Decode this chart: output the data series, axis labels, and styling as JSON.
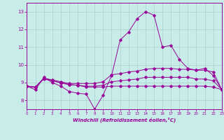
{
  "xlabel": "Windchill (Refroidissement éolien,°C)",
  "background_color": "#c8ece8",
  "grid_color": "#b0d0d0",
  "line_color": "#990099",
  "xlim": [
    0,
    23
  ],
  "ylim": [
    7.5,
    13.5
  ],
  "yticks": [
    8,
    9,
    10,
    11,
    12,
    13
  ],
  "xticks": [
    0,
    1,
    2,
    3,
    4,
    5,
    6,
    7,
    8,
    9,
    10,
    11,
    12,
    13,
    14,
    15,
    16,
    17,
    18,
    19,
    20,
    21,
    22,
    23
  ],
  "series": {
    "line1_x": [
      0,
      1,
      2,
      3,
      4,
      5,
      6,
      7,
      8,
      9,
      10,
      11,
      12,
      13,
      14,
      15,
      16,
      17,
      18,
      19,
      20,
      21,
      22,
      23
    ],
    "line1_y": [
      8.8,
      8.6,
      9.3,
      9.0,
      8.8,
      8.5,
      8.4,
      8.35,
      7.5,
      8.3,
      9.4,
      11.4,
      11.85,
      12.6,
      13.0,
      12.8,
      11.0,
      11.1,
      10.3,
      9.8,
      9.7,
      9.8,
      9.4,
      8.6
    ],
    "line2_x": [
      0,
      1,
      2,
      3,
      4,
      5,
      6,
      7,
      8,
      9,
      10,
      11,
      12,
      13,
      14,
      15,
      16,
      17,
      18,
      19,
      20,
      21,
      22,
      23
    ],
    "line2_y": [
      8.8,
      8.75,
      9.25,
      9.15,
      9.05,
      8.95,
      8.95,
      8.95,
      8.95,
      9.05,
      9.45,
      9.5,
      9.6,
      9.65,
      9.75,
      9.8,
      9.8,
      9.8,
      9.75,
      9.75,
      9.7,
      9.7,
      9.6,
      8.6
    ],
    "line3_x": [
      0,
      1,
      2,
      3,
      4,
      5,
      6,
      7,
      8,
      9,
      10,
      11,
      12,
      13,
      14,
      15,
      16,
      17,
      18,
      19,
      20,
      21,
      22,
      23
    ],
    "line3_y": [
      8.8,
      8.75,
      9.2,
      9.1,
      9.0,
      8.9,
      8.85,
      8.75,
      8.75,
      8.75,
      8.8,
      8.8,
      8.8,
      8.8,
      8.8,
      8.8,
      8.8,
      8.8,
      8.8,
      8.8,
      8.8,
      8.8,
      8.75,
      8.6
    ],
    "line4_x": [
      0,
      1,
      2,
      3,
      4,
      5,
      6,
      7,
      8,
      9,
      10,
      11,
      12,
      13,
      14,
      15,
      16,
      17,
      18,
      19,
      20,
      21,
      22,
      23
    ],
    "line4_y": [
      8.8,
      8.72,
      9.25,
      9.12,
      8.98,
      8.88,
      8.85,
      8.8,
      8.8,
      8.85,
      9.05,
      9.1,
      9.15,
      9.2,
      9.3,
      9.3,
      9.3,
      9.3,
      9.3,
      9.3,
      9.2,
      9.2,
      9.1,
      8.6
    ]
  }
}
